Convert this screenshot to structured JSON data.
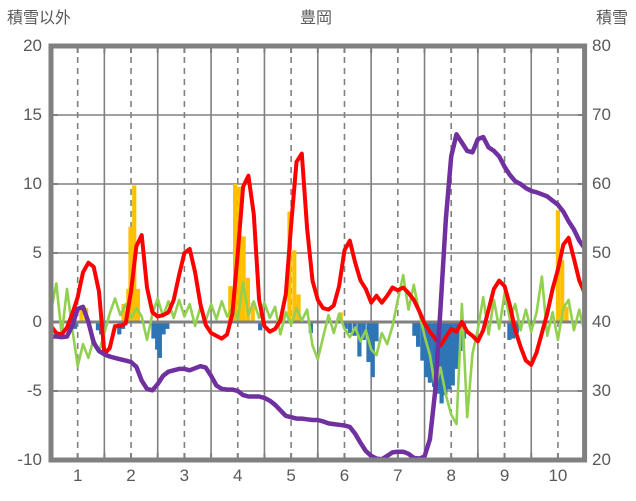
{
  "header": {
    "left_axis_title": "積雪以外",
    "chart_title": "豊岡",
    "right_axis_title": "積雪"
  },
  "colors": {
    "red_line": "#FF0000",
    "green_line": "#92D050",
    "purple_line": "#7030A0",
    "orange_bars": "#FFC000",
    "blue_bars": "#2E75B6",
    "grid": "#808080",
    "text": "#595959",
    "background": "#FFFFFF"
  },
  "chart_data": {
    "type": "line",
    "title": "豊岡",
    "grid": "on",
    "legend": "none",
    "left_axis": {
      "label": "積雪以外",
      "min": -10,
      "max": 20,
      "ticks": [
        20,
        15,
        10,
        5,
        0,
        -5,
        -10
      ]
    },
    "right_axis": {
      "label": "積雪",
      "min": 20,
      "max": 80,
      "ticks": [
        80,
        70,
        60,
        50,
        40,
        30,
        20
      ]
    },
    "x_axis": {
      "min": 0.5,
      "max": 10.5,
      "tick_labels": [
        "1",
        "2",
        "3",
        "4",
        "5",
        "6",
        "7",
        "8",
        "9",
        "10"
      ]
    },
    "x_start": 0.5,
    "x_step": 0.1,
    "series": [
      {
        "name": "red-line",
        "axis": "left",
        "color": "#FF0000",
        "width": 4,
        "values": [
          -0.3,
          -0.8,
          -0.9,
          -0.4,
          0.6,
          1.8,
          3.6,
          4.3,
          4.0,
          2.2,
          -2.3,
          -1.9,
          -0.3,
          -0.3,
          -0.1,
          2.2,
          5.5,
          6.3,
          2.5,
          0.7,
          0.4,
          0.5,
          0.7,
          1.6,
          3.4,
          5.0,
          5.3,
          3.6,
          1.3,
          -0.2,
          -0.8,
          -1.0,
          -1.2,
          -0.9,
          0.6,
          5.0,
          9.8,
          10.6,
          7.8,
          1.6,
          -0.3,
          -0.7,
          -0.5,
          0.1,
          2.0,
          7.0,
          11.6,
          12.2,
          6.8,
          3.0,
          1.6,
          1.0,
          0.9,
          1.2,
          2.6,
          5.2,
          5.9,
          4.3,
          3.0,
          2.4,
          1.4,
          1.9,
          1.4,
          1.9,
          2.5,
          2.3,
          2.5,
          2.1,
          1.6,
          0.8,
          -0.1,
          -0.7,
          -1.2,
          -1.7,
          -1.1,
          -0.5,
          -0.7,
          0.0,
          -0.7,
          -1.0,
          -1.4,
          -0.6,
          0.9,
          2.4,
          3.0,
          2.6,
          1.2,
          -0.6,
          -1.8,
          -2.8,
          -3.1,
          -2.2,
          -0.8,
          0.6,
          2.4,
          3.8,
          5.6,
          6.1,
          4.6,
          3.0,
          2.1
        ]
      },
      {
        "name": "green-line",
        "axis": "left",
        "color": "#92D050",
        "width": 2.6,
        "values": [
          0.8,
          2.8,
          -0.9,
          2.4,
          -0.5,
          -3.2,
          -1.6,
          -2.6,
          -1.2,
          -2.2,
          -0.8,
          0.6,
          1.7,
          0.5,
          1.3,
          0.3,
          1.0,
          0.4,
          -1.3,
          0.6,
          1.7,
          0.4,
          1.5,
          0.3,
          1.6,
          0.4,
          1.3,
          -0.3,
          1.1,
          0.1,
          1.3,
          0.2,
          1.5,
          0.4,
          1.0,
          0.2,
          2.9,
          0.5,
          1.5,
          0.3,
          1.4,
          0.3,
          1.1,
          -0.9,
          0.7,
          -0.2,
          1.0,
          0.1,
          0.9,
          -1.7,
          -2.7,
          -1.1,
          0.5,
          -0.8,
          0.6,
          -0.5,
          -1.1,
          -0.4,
          -1.4,
          -0.6,
          -2.0,
          -2.4,
          -0.8,
          -1.6,
          -0.3,
          1.6,
          3.4,
          0.9,
          2.7,
          0.7,
          -1.0,
          -2.4,
          -4.7,
          -3.3,
          -5.3,
          -6.7,
          -7.4,
          1.3,
          -6.9,
          -2.3,
          -0.5,
          1.8,
          -0.9,
          1.6,
          -0.5,
          2.1,
          0.2,
          1.3,
          -0.6,
          0.9,
          -0.7,
          0.7,
          3.3,
          -1.0,
          0.7,
          -1.3,
          1.0,
          1.6,
          -0.6,
          0.9,
          -0.8
        ]
      },
      {
        "name": "purple-line",
        "axis": "right",
        "color": "#7030A0",
        "width": 4.5,
        "values": [
          37.9,
          37.9,
          37.8,
          37.9,
          39.5,
          41.9,
          42.2,
          40.0,
          37.0,
          35.8,
          35.3,
          35.0,
          34.8,
          34.6,
          34.4,
          34.2,
          33.5,
          31.5,
          30.3,
          30.1,
          31.0,
          32.2,
          32.8,
          33.0,
          33.2,
          33.2,
          33.0,
          33.3,
          33.6,
          33.4,
          32.2,
          30.8,
          30.3,
          30.2,
          30.2,
          30.0,
          29.4,
          29.2,
          29.2,
          29.2,
          29.0,
          28.6,
          28.0,
          27.2,
          26.4,
          26.2,
          26.0,
          26.0,
          25.9,
          25.8,
          25.8,
          25.6,
          25.3,
          25.2,
          25.1,
          25.0,
          24.8,
          23.8,
          22.5,
          21.3,
          20.6,
          20.2,
          20.1,
          20.6,
          21.1,
          21.2,
          21.2,
          20.9,
          20.3,
          20.2,
          20.5,
          23.0,
          30.0,
          42.0,
          55.0,
          64.0,
          67.2,
          66.0,
          64.8,
          64.6,
          66.5,
          66.8,
          65.3,
          64.8,
          64.0,
          62.5,
          61.3,
          60.4,
          60.0,
          59.4,
          59.0,
          58.8,
          58.5,
          58.2,
          57.6,
          57.0,
          56.0,
          54.6,
          53.4,
          51.8,
          50.7
        ]
      }
    ],
    "bars": [
      {
        "name": "orange-bars",
        "axis": "left",
        "color": "#FFC000",
        "points": [
          [
            1.07,
            1.1
          ],
          [
            1.16,
            1.0
          ],
          [
            1.86,
            1.3
          ],
          [
            1.95,
            2.4
          ],
          [
            1.99,
            6.9
          ],
          [
            2.06,
            9.9
          ],
          [
            2.13,
            2.4
          ],
          [
            3.86,
            2.6
          ],
          [
            3.95,
            10.0
          ],
          [
            4.03,
            9.8
          ],
          [
            4.11,
            6.2
          ],
          [
            4.19,
            3.2
          ],
          [
            4.28,
            1.4
          ],
          [
            4.97,
            8.0
          ],
          [
            5.06,
            5.2
          ],
          [
            5.14,
            2.0
          ],
          [
            5.93,
            0.7
          ],
          [
            9.14,
            0.7
          ],
          [
            10.0,
            8.1
          ],
          [
            10.08,
            4.5
          ],
          [
            10.16,
            1.1
          ]
        ]
      },
      {
        "name": "blue-bars",
        "axis": "left",
        "color": "#2E75B6",
        "points": [
          [
            0.95,
            -0.5
          ],
          [
            1.38,
            -0.6
          ],
          [
            1.44,
            -0.9
          ],
          [
            1.78,
            -0.9
          ],
          [
            1.85,
            -0.5
          ],
          [
            2.42,
            -1.2
          ],
          [
            2.49,
            -2.0
          ],
          [
            2.54,
            -2.6
          ],
          [
            2.61,
            -0.9
          ],
          [
            2.68,
            -0.5
          ],
          [
            4.42,
            -0.6
          ],
          [
            5.37,
            -0.8
          ],
          [
            6.02,
            -0.5
          ],
          [
            6.1,
            -0.8
          ],
          [
            6.19,
            -1.0
          ],
          [
            6.28,
            -2.5
          ],
          [
            6.36,
            -1.3
          ],
          [
            6.45,
            -2.9
          ],
          [
            6.53,
            -4.0
          ],
          [
            6.6,
            -1.4
          ],
          [
            7.31,
            -1.0
          ],
          [
            7.38,
            -1.8
          ],
          [
            7.46,
            -2.8
          ],
          [
            7.53,
            -4.0
          ],
          [
            7.6,
            -4.4
          ],
          [
            7.68,
            -4.7
          ],
          [
            7.75,
            -5.2
          ],
          [
            7.82,
            -5.9
          ],
          [
            7.89,
            -5.3
          ],
          [
            7.96,
            -4.9
          ],
          [
            8.03,
            -4.6
          ],
          [
            8.1,
            -3.4
          ],
          [
            8.17,
            -2.1
          ],
          [
            8.24,
            -1.2
          ],
          [
            9.09,
            -1.3
          ],
          [
            9.16,
            -1.2
          ],
          [
            9.23,
            -0.8
          ]
        ]
      }
    ]
  }
}
